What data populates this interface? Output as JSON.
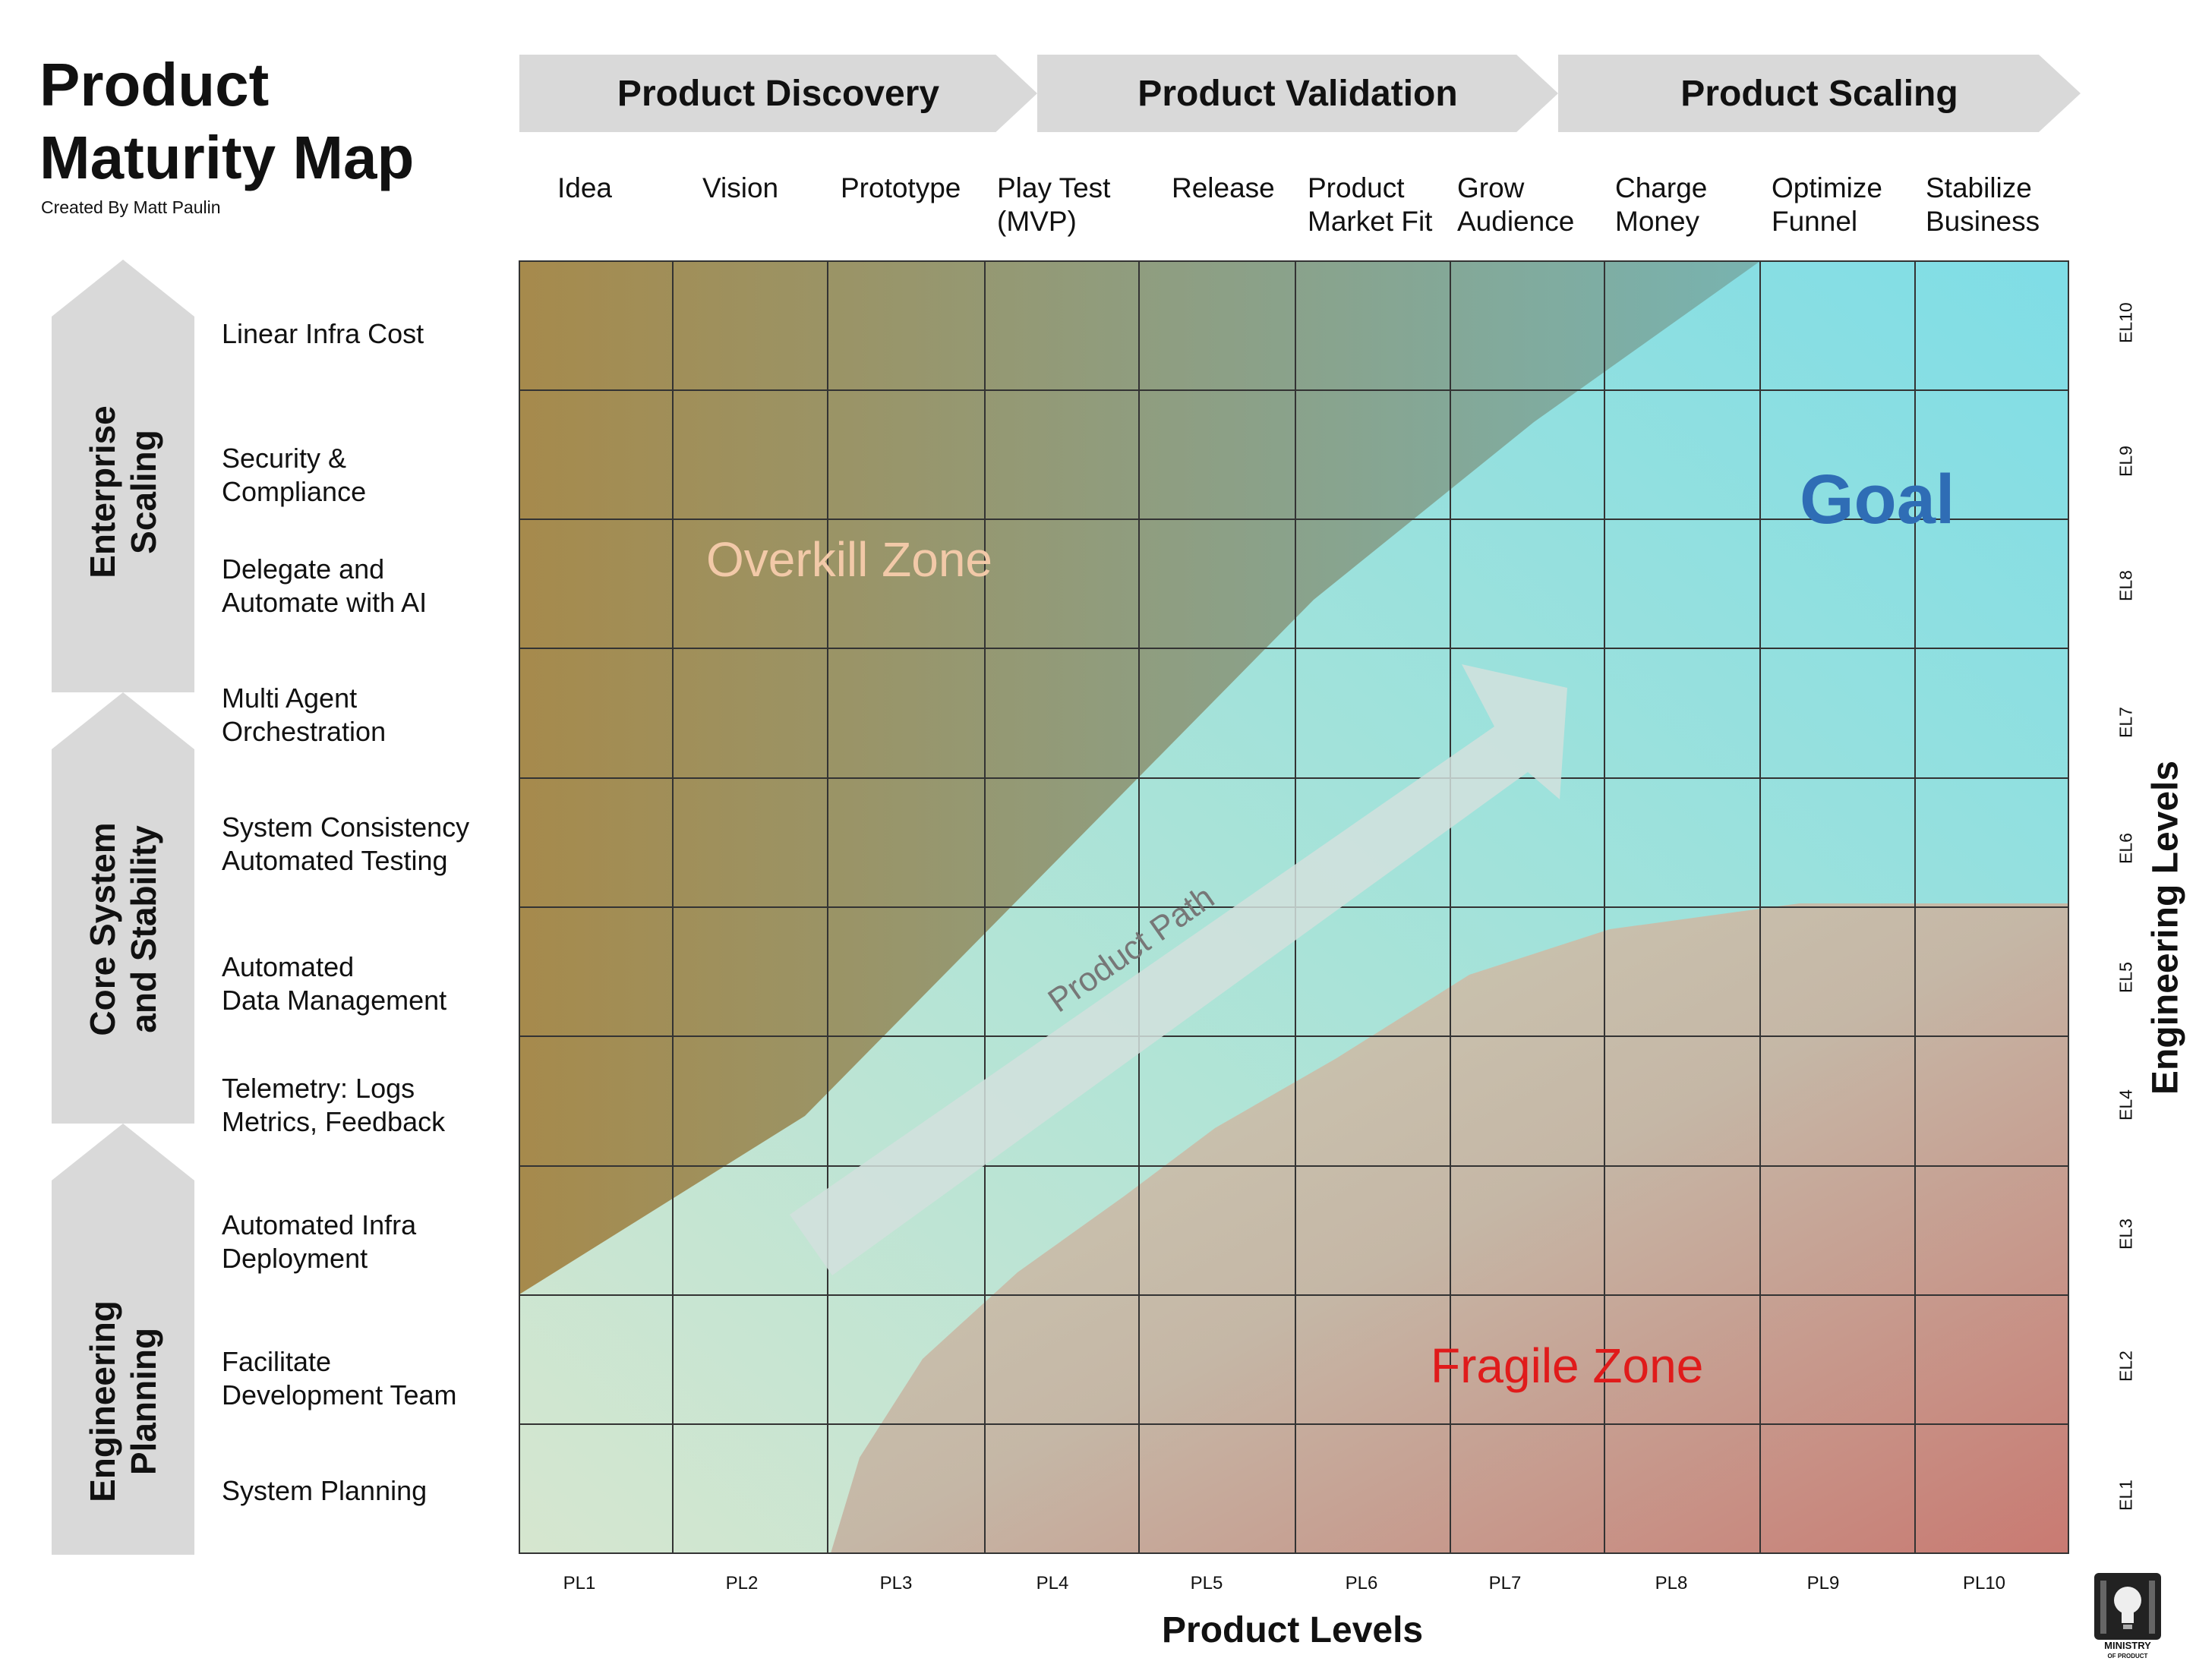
{
  "header": {
    "title": "Product\nMaturity Map",
    "subtitle": "Created By Matt Paulin"
  },
  "stages": [
    {
      "label": "Product Discovery"
    },
    {
      "label": "Product Validation"
    },
    {
      "label": "Product Scaling"
    }
  ],
  "columns": [
    {
      "label": "Idea",
      "tick": "PL1"
    },
    {
      "label": "Vision",
      "tick": "PL2"
    },
    {
      "label": "Prototype",
      "tick": "PL3"
    },
    {
      "label": "Play Test\n(MVP)",
      "tick": "PL4"
    },
    {
      "label": "Release",
      "tick": "PL5"
    },
    {
      "label": "Product\nMarket Fit",
      "tick": "PL6"
    },
    {
      "label": "Grow\nAudience",
      "tick": "PL7"
    },
    {
      "label": "Charge\nMoney",
      "tick": "PL8"
    },
    {
      "label": "Optimize\nFunnel",
      "tick": "PL9"
    },
    {
      "label": "Stabilize\nBusiness",
      "tick": "PL10"
    }
  ],
  "rows": [
    {
      "label": "Linear Infra Cost",
      "tick": "EL10"
    },
    {
      "label": "Security &\nCompliance",
      "tick": "EL9"
    },
    {
      "label": "Delegate and\nAutomate with AI",
      "tick": "EL8"
    },
    {
      "label": "Multi Agent\nOrchestration",
      "tick": "EL7"
    },
    {
      "label": "System Consistency\nAutomated Testing",
      "tick": "EL6"
    },
    {
      "label": "Automated\nData Management",
      "tick": "EL5"
    },
    {
      "label": "Telemetry: Logs\nMetrics, Feedback",
      "tick": "EL4"
    },
    {
      "label": "Automated Infra\nDeployment",
      "tick": "EL3"
    },
    {
      "label": "Facilitate\nDevelopment Team",
      "tick": "EL2"
    },
    {
      "label": "System Planning",
      "tick": "EL1"
    }
  ],
  "groups": [
    {
      "label": "Enterprise\nScaling"
    },
    {
      "label": "Core System\nand Stability"
    },
    {
      "label": "Engineering\nPlanning"
    }
  ],
  "axes": {
    "x_label": "Product Levels",
    "y_label": "Engineering Levels"
  },
  "zones": {
    "overkill": "Overkill Zone",
    "goal": "Goal",
    "fragile": "Fragile Zone",
    "path": "Product Path"
  },
  "logo": {
    "icon": "lightbulb-building-icon",
    "text": "MINISTRY OF PRODUCT"
  },
  "colors": {
    "overkill": "#a68a4c",
    "goal": "#7fdde6",
    "fragile": "#c97a72",
    "goal_text": "#2f6db5",
    "fragile_text": "#e01b1b",
    "overkill_text": "#f2c9a8"
  }
}
